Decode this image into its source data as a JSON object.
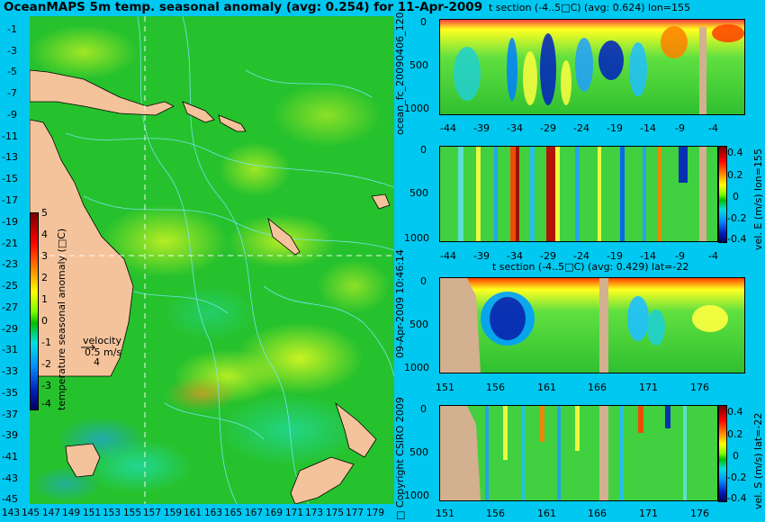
{
  "map": {
    "title": "OceanMAPS 5m temp. seasonal anomaly (avg: 0.254) for 11-Apr-2009",
    "lat_labels": [
      "-1",
      "-3",
      "-5",
      "-7",
      "-9",
      "-11",
      "-13",
      "-15",
      "-17",
      "-19",
      "-21",
      "-23",
      "-25",
      "-27",
      "-29",
      "-31",
      "-33",
      "-35",
      "-37",
      "-39",
      "-41",
      "-43",
      "-45"
    ],
    "lon_labels": [
      "143",
      "145",
      "147",
      "149",
      "151",
      "153",
      "155",
      "157",
      "159",
      "161",
      "163",
      "165",
      "167",
      "169",
      "171",
      "173",
      "175",
      "177",
      "179"
    ],
    "colorbar": {
      "label": "temperature seasonal anomaly (□C)",
      "ticks": [
        "5",
        "4",
        "3",
        "2",
        "1",
        "0",
        "-1",
        "-2",
        "-3",
        "-4"
      ]
    },
    "velocity_legend": {
      "label": "velocity",
      "value": "0.5 m/s",
      "count": "4"
    },
    "crosshair": {
      "lon": 155,
      "lat": -22
    },
    "colors": {
      "land": "#f5c39b",
      "ocean_base": "#22c22a",
      "contour": "#7fe6ff"
    }
  },
  "sections": {
    "panel1": {
      "title": "t section (-4..5□C) (avg: 0.624) lon=155",
      "x_ticks": [
        "-44",
        "-39",
        "-34",
        "-29",
        "-24",
        "-19",
        "-14",
        "-9",
        "-4"
      ],
      "y_ticks": [
        "0",
        "500",
        "1000"
      ]
    },
    "panel2": {
      "colorbar_label": "vel. E (m/s) lon=155",
      "x_ticks": [
        "-44",
        "-39",
        "-34",
        "-29",
        "-24",
        "-19",
        "-14",
        "-9",
        "-4"
      ],
      "y_ticks": [
        "0",
        "500",
        "1000"
      ],
      "cb_ticks": [
        "0.4",
        "0.2",
        "0",
        "-0.2",
        "-0.4"
      ]
    },
    "panel3": {
      "title": "t section (-4..5□C) (avg: 0.429) lat=-22",
      "x_ticks": [
        "151",
        "156",
        "161",
        "166",
        "171",
        "176"
      ],
      "y_ticks": [
        "0",
        "500",
        "1000"
      ]
    },
    "panel4": {
      "colorbar_label": "vel. S (m/s) lat=-22",
      "x_ticks": [
        "151",
        "156",
        "161",
        "166",
        "171",
        "176"
      ],
      "y_ticks": [
        "0",
        "500",
        "1000"
      ],
      "cb_ticks": [
        "0.4",
        "0.2",
        "0",
        "-0.2",
        "-0.4"
      ]
    },
    "side_label_1": "ocean_fc_20090406_120",
    "side_label_2": "09-Apr-2009 10:46:14",
    "side_label_3": "□ Copyright CSIRO 2009"
  }
}
